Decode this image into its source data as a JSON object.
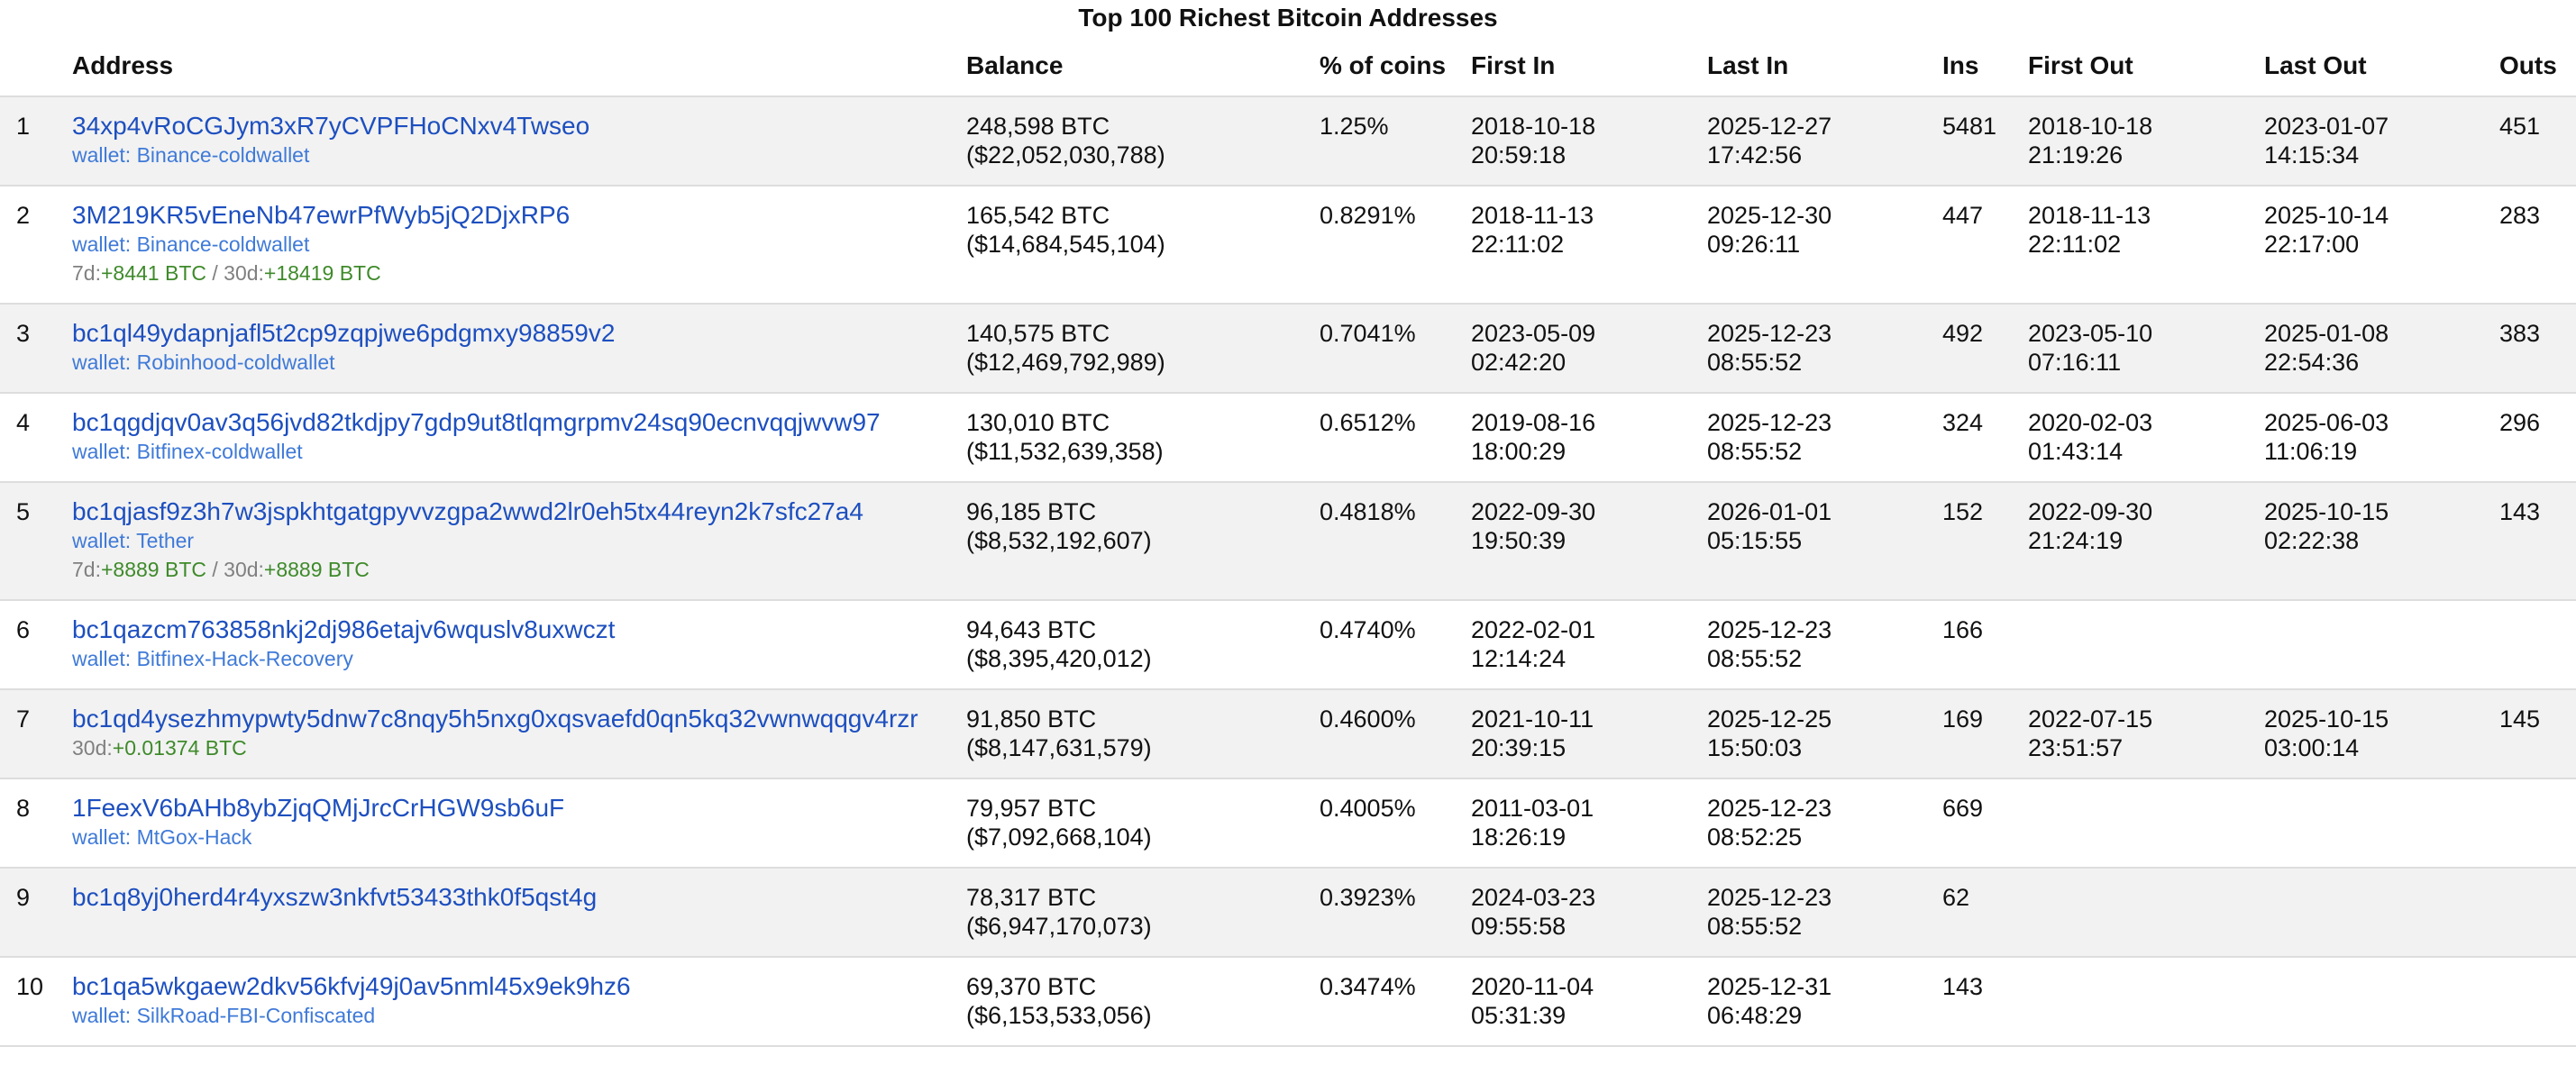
{
  "title": "Top 100 Richest Bitcoin Addresses",
  "table": {
    "headers": [
      "",
      "Address",
      "Balance",
      "% of coins",
      "First In",
      "Last In",
      "Ins",
      "First Out",
      "Last Out",
      "Outs"
    ],
    "rows": [
      {
        "rank": "1",
        "address": "34xp4vRoCGJym3xR7yCVPFHoCNxv4Twseo",
        "wallet": "wallet: Binance-coldwallet",
        "change": null,
        "btc": "248,598 BTC",
        "usd": "($22,052,030,788)",
        "pct": "1.25%",
        "first_in": [
          "2018-10-18",
          "20:59:18"
        ],
        "last_in": [
          "2025-12-27",
          "17:42:56"
        ],
        "ins": "5481",
        "first_out": [
          "2018-10-18",
          "21:19:26"
        ],
        "last_out": [
          "2023-01-07",
          "14:15:34"
        ],
        "outs": "451"
      },
      {
        "rank": "2",
        "address": "3M219KR5vEneNb47ewrPfWyb5jQ2DjxRP6",
        "wallet": "wallet: Binance-coldwallet",
        "change": [
          "7d:",
          "+8441 BTC",
          " / 30d:",
          "+18419 BTC"
        ],
        "btc": "165,542 BTC",
        "usd": "($14,684,545,104)",
        "pct": "0.8291%",
        "first_in": [
          "2018-11-13",
          "22:11:02"
        ],
        "last_in": [
          "2025-12-30",
          "09:26:11"
        ],
        "ins": "447",
        "first_out": [
          "2018-11-13",
          "22:11:02"
        ],
        "last_out": [
          "2025-10-14",
          "22:17:00"
        ],
        "outs": "283"
      },
      {
        "rank": "3",
        "address": "bc1ql49ydapnjafl5t2cp9zqpjwe6pdgmxy98859v2",
        "wallet": "wallet: Robinhood-coldwallet",
        "change": null,
        "btc": "140,575 BTC",
        "usd": "($12,469,792,989)",
        "pct": "0.7041%",
        "first_in": [
          "2023-05-09",
          "02:42:20"
        ],
        "last_in": [
          "2025-12-23",
          "08:55:52"
        ],
        "ins": "492",
        "first_out": [
          "2023-05-10",
          "07:16:11"
        ],
        "last_out": [
          "2025-01-08",
          "22:54:36"
        ],
        "outs": "383"
      },
      {
        "rank": "4",
        "address": "bc1qgdjqv0av3q56jvd82tkdjpy7gdp9ut8tlqmgrpmv24sq90ecnvqqjwvw97",
        "wallet": "wallet: Bitfinex-coldwallet",
        "change": null,
        "btc": "130,010 BTC",
        "usd": "($11,532,639,358)",
        "pct": "0.6512%",
        "first_in": [
          "2019-08-16",
          "18:00:29"
        ],
        "last_in": [
          "2025-12-23",
          "08:55:52"
        ],
        "ins": "324",
        "first_out": [
          "2020-02-03",
          "01:43:14"
        ],
        "last_out": [
          "2025-06-03",
          "11:06:19"
        ],
        "outs": "296"
      },
      {
        "rank": "5",
        "address": "bc1qjasf9z3h7w3jspkhtgatgpyvvzgpa2wwd2lr0eh5tx44reyn2k7sfc27a4",
        "wallet": "wallet: Tether",
        "change": [
          "7d:",
          "+8889 BTC",
          " / 30d:",
          "+8889 BTC"
        ],
        "btc": "96,185 BTC",
        "usd": "($8,532,192,607)",
        "pct": "0.4818%",
        "first_in": [
          "2022-09-30",
          "19:50:39"
        ],
        "last_in": [
          "2026-01-01",
          "05:15:55"
        ],
        "ins": "152",
        "first_out": [
          "2022-09-30",
          "21:24:19"
        ],
        "last_out": [
          "2025-10-15",
          "02:22:38"
        ],
        "outs": "143"
      },
      {
        "rank": "6",
        "address": "bc1qazcm763858nkj2dj986etajv6wquslv8uxwczt",
        "wallet": "wallet: Bitfinex-Hack-Recovery",
        "change": null,
        "btc": "94,643 BTC",
        "usd": "($8,395,420,012)",
        "pct": "0.4740%",
        "first_in": [
          "2022-02-01",
          "12:14:24"
        ],
        "last_in": [
          "2025-12-23",
          "08:55:52"
        ],
        "ins": "166",
        "first_out": null,
        "last_out": null,
        "outs": null
      },
      {
        "rank": "7",
        "address": "bc1qd4ysezhmypwty5dnw7c8nqy5h5nxg0xqsvaefd0qn5kq32vwnwqqgv4rzr",
        "wallet": null,
        "change": [
          "30d:",
          "+0.01374 BTC"
        ],
        "btc": "91,850 BTC",
        "usd": "($8,147,631,579)",
        "pct": "0.4600%",
        "first_in": [
          "2021-10-11",
          "20:39:15"
        ],
        "last_in": [
          "2025-12-25",
          "15:50:03"
        ],
        "ins": "169",
        "first_out": [
          "2022-07-15",
          "23:51:57"
        ],
        "last_out": [
          "2025-10-15",
          "03:00:14"
        ],
        "outs": "145"
      },
      {
        "rank": "8",
        "address": "1FeexV6bAHb8ybZjqQMjJrcCrHGW9sb6uF",
        "wallet": "wallet: MtGox-Hack",
        "change": null,
        "btc": "79,957 BTC",
        "usd": "($7,092,668,104)",
        "pct": "0.4005%",
        "first_in": [
          "2011-03-01",
          "18:26:19"
        ],
        "last_in": [
          "2025-12-23",
          "08:52:25"
        ],
        "ins": "669",
        "first_out": null,
        "last_out": null,
        "outs": null
      },
      {
        "rank": "9",
        "address": "bc1q8yj0herd4r4yxszw3nkfvt53433thk0f5qst4g",
        "wallet": null,
        "change": null,
        "btc": "78,317 BTC",
        "usd": "($6,947,170,073)",
        "pct": "0.3923%",
        "first_in": [
          "2024-03-23",
          "09:55:58"
        ],
        "last_in": [
          "2025-12-23",
          "08:55:52"
        ],
        "ins": "62",
        "first_out": null,
        "last_out": null,
        "outs": null
      },
      {
        "rank": "10",
        "address": "bc1qa5wkgaew2dkv56kfvj49j0av5nml45x9ek9hz6",
        "wallet": "wallet: SilkRoad-FBI-Confiscated",
        "change": null,
        "btc": "69,370 BTC",
        "usd": "($6,153,533,056)",
        "pct": "0.3474%",
        "first_in": [
          "2020-11-04",
          "05:31:39"
        ],
        "last_in": [
          "2025-12-31",
          "06:48:29"
        ],
        "ins": "143",
        "first_out": null,
        "last_out": null,
        "outs": null
      }
    ]
  }
}
